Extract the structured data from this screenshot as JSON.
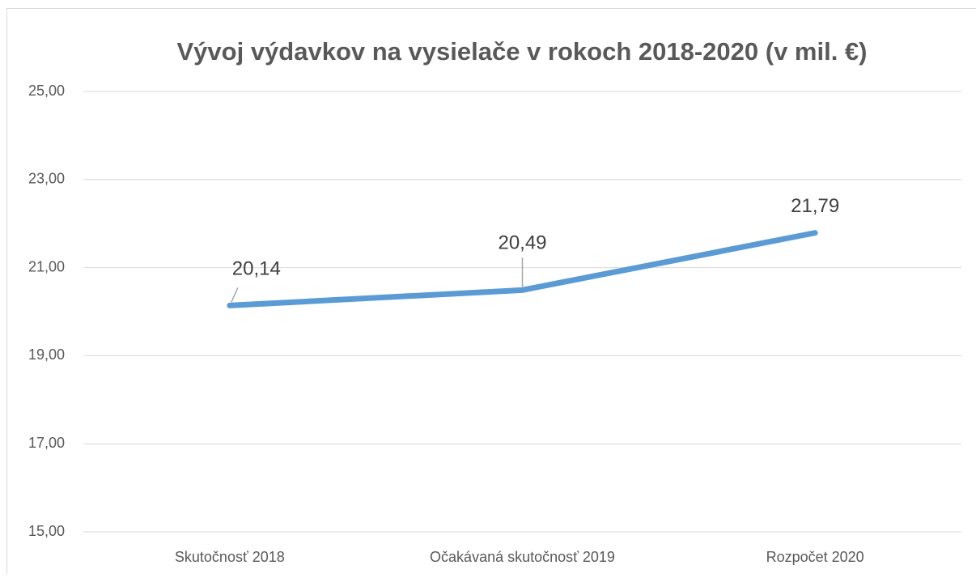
{
  "chart_data": {
    "type": "line",
    "title": "Vývoj výdavkov na vysielače v rokoch 2018-2020 (v mil. €)",
    "categories": [
      "Skutočnosť 2018",
      "Očakávaná skutočnosť 2019",
      "Rozpočet 2020"
    ],
    "series": [
      {
        "color": "#5b9bd5",
        "values": [
          20.14,
          20.49,
          21.79
        ],
        "value_labels": [
          "20,14",
          "20,49",
          "21,79"
        ]
      }
    ],
    "ylim": [
      15,
      25
    ],
    "yticks": [
      {
        "value": 15,
        "label": "15,00"
      },
      {
        "value": 17,
        "label": "17,00"
      },
      {
        "value": 19,
        "label": "19,00"
      },
      {
        "value": 21,
        "label": "21,00"
      },
      {
        "value": 23,
        "label": "23,00"
      },
      {
        "value": 25,
        "label": "25,00"
      }
    ],
    "grid": true
  }
}
